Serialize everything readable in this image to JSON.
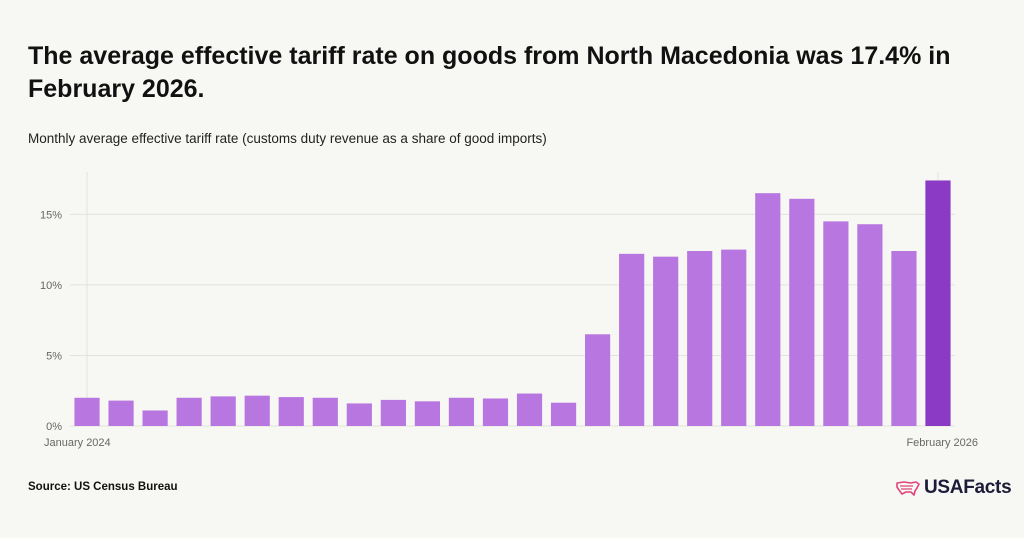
{
  "title": "The average effective tariff rate on goods from North Macedonia was 17.4% in February 2026.",
  "subtitle": "Monthly average effective tariff rate (customs duty revenue as a share of good imports)",
  "source": "Source: US Census Bureau",
  "logo": {
    "icon": "us-map-icon",
    "text": "USAFacts"
  },
  "colors": {
    "bar": "#b877e0",
    "highlight": "#8b3ac6",
    "grid": "#e3e3de",
    "axis_text": "#666666"
  },
  "chart_data": {
    "type": "bar",
    "categories": [
      "January 2024",
      "",
      "",
      "",
      "",
      "",
      "",
      "",
      "",
      "",
      "",
      "",
      "",
      "",
      "",
      "",
      "",
      "",
      "",
      "",
      "",
      "",
      "",
      "",
      "",
      "February 2026"
    ],
    "values": [
      2.0,
      1.8,
      1.1,
      2.0,
      2.1,
      2.15,
      2.05,
      2.0,
      1.6,
      1.85,
      1.75,
      2.0,
      1.95,
      2.3,
      1.65,
      6.5,
      12.2,
      12.0,
      12.4,
      12.5,
      16.5,
      16.1,
      14.5,
      14.3,
      12.4,
      17.4
    ],
    "highlight_index": 25,
    "ylim": [
      0,
      18
    ],
    "yticks": [
      0,
      5,
      10,
      15
    ],
    "ytick_labels": [
      "0%",
      "5%",
      "10%",
      "15%"
    ],
    "xtick_labels": [
      "January 2024",
      "February 2026"
    ],
    "grid": true,
    "legend": "none"
  }
}
